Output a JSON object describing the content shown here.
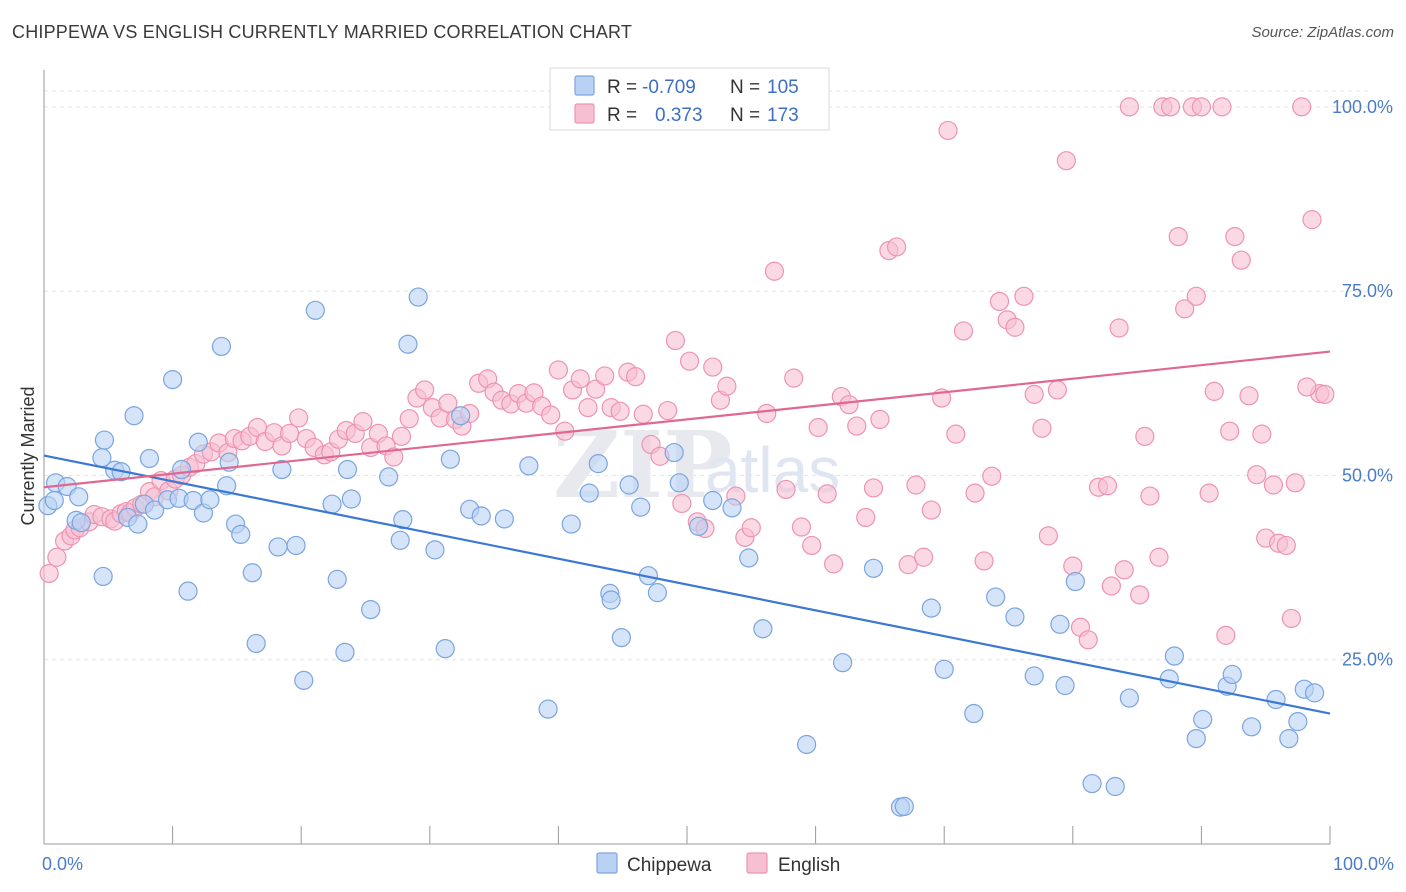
{
  "header": {
    "title": "CHIPPEWA VS ENGLISH CURRENTLY MARRIED CORRELATION CHART",
    "source": "Source: ZipAtlas.com"
  },
  "watermark": {
    "zip": "ZIP",
    "atlas": "atlas"
  },
  "legend": {
    "rows": [
      {
        "r_label": "R =",
        "r_value": "-0.709",
        "n_label": "N =",
        "n_value": "105"
      },
      {
        "r_label": "R =",
        "r_value": "0.373",
        "n_label": "N =",
        "n_value": "173"
      }
    ]
  },
  "bottom_legend": [
    "Chippewa",
    "English"
  ],
  "colors": {
    "chippewa_fill": "#b9d2f3",
    "chippewa_stroke": "#7aa5e0",
    "chippewa_line": "#3b78d4",
    "english_fill": "#f7c0d2",
    "english_stroke": "#ee93b2",
    "english_line": "#e06890"
  },
  "chart_data": {
    "type": "scatter",
    "title": "CHIPPEWA VS ENGLISH CURRENTLY MARRIED CORRELATION CHART",
    "xlabel": "",
    "ylabel": "Currently Married",
    "xlim": [
      0,
      100
    ],
    "ylim": [
      0,
      105
    ],
    "x_tick_labels": [
      "0.0%",
      "100.0%"
    ],
    "y_ticks": [
      25,
      50,
      75,
      100
    ],
    "y_tick_labels": [
      "25.0%",
      "50.0%",
      "75.0%",
      "100.0%"
    ],
    "grid": true,
    "legend_position": "top-center",
    "series": [
      {
        "name": "Chippewa",
        "r": -0.709,
        "n": 105,
        "trend": [
          [
            0,
            52.7
          ],
          [
            100,
            17.7
          ]
        ],
        "points": [
          [
            0.3,
            45.9
          ],
          [
            0.8,
            46.6
          ],
          [
            0.9,
            49.0
          ],
          [
            1.8,
            48.5
          ],
          [
            2.5,
            43.9
          ],
          [
            2.7,
            47.1
          ],
          [
            2.9,
            43.6
          ],
          [
            4.5,
            52.4
          ],
          [
            4.6,
            36.3
          ],
          [
            4.7,
            54.8
          ],
          [
            5.5,
            50.7
          ],
          [
            6.0,
            50.5
          ],
          [
            6.5,
            44.3
          ],
          [
            7.0,
            58.1
          ],
          [
            7.3,
            43.4
          ],
          [
            7.8,
            46.1
          ],
          [
            8.2,
            52.3
          ],
          [
            8.6,
            45.3
          ],
          [
            9.6,
            46.7
          ],
          [
            10.0,
            63.0
          ],
          [
            10.5,
            46.9
          ],
          [
            10.7,
            50.8
          ],
          [
            11.2,
            34.3
          ],
          [
            11.6,
            46.6
          ],
          [
            12.0,
            54.5
          ],
          [
            12.4,
            44.9
          ],
          [
            12.9,
            46.7
          ],
          [
            13.8,
            67.5
          ],
          [
            14.2,
            48.6
          ],
          [
            14.4,
            51.8
          ],
          [
            14.9,
            43.4
          ],
          [
            15.3,
            42.0
          ],
          [
            16.2,
            36.8
          ],
          [
            16.5,
            27.2
          ],
          [
            18.2,
            40.3
          ],
          [
            18.5,
            50.8
          ],
          [
            19.6,
            40.5
          ],
          [
            20.2,
            22.2
          ],
          [
            21.1,
            72.4
          ],
          [
            22.4,
            46.1
          ],
          [
            22.8,
            35.9
          ],
          [
            23.4,
            26.0
          ],
          [
            23.6,
            50.8
          ],
          [
            23.9,
            46.8
          ],
          [
            25.4,
            31.8
          ],
          [
            26.8,
            49.8
          ],
          [
            27.7,
            41.2
          ],
          [
            27.9,
            44.0
          ],
          [
            28.3,
            67.8
          ],
          [
            29.1,
            74.2
          ],
          [
            30.4,
            39.9
          ],
          [
            31.2,
            26.5
          ],
          [
            31.6,
            52.2
          ],
          [
            32.4,
            58.1
          ],
          [
            33.1,
            45.4
          ],
          [
            34.0,
            44.5
          ],
          [
            35.8,
            44.1
          ],
          [
            37.7,
            51.3
          ],
          [
            39.2,
            18.3
          ],
          [
            41.0,
            43.4
          ],
          [
            42.4,
            47.6
          ],
          [
            43.1,
            51.6
          ],
          [
            44.0,
            34.0
          ],
          [
            44.1,
            33.1
          ],
          [
            44.9,
            28.0
          ],
          [
            45.5,
            48.7
          ],
          [
            46.4,
            45.7
          ],
          [
            47.0,
            36.4
          ],
          [
            47.7,
            34.1
          ],
          [
            49.0,
            53.1
          ],
          [
            49.4,
            49.0
          ],
          [
            50.9,
            43.1
          ],
          [
            52.0,
            46.6
          ],
          [
            53.5,
            45.6
          ],
          [
            54.8,
            38.8
          ],
          [
            55.9,
            29.2
          ],
          [
            59.3,
            13.5
          ],
          [
            62.1,
            24.6
          ],
          [
            64.5,
            37.4
          ],
          [
            66.6,
            5.0
          ],
          [
            66.9,
            5.1
          ],
          [
            69.0,
            32.0
          ],
          [
            70.0,
            23.7
          ],
          [
            72.3,
            17.7
          ],
          [
            74.0,
            33.5
          ],
          [
            75.5,
            30.8
          ],
          [
            77.0,
            22.8
          ],
          [
            79.0,
            29.8
          ],
          [
            79.4,
            21.5
          ],
          [
            80.2,
            35.6
          ],
          [
            81.5,
            8.2
          ],
          [
            83.3,
            7.8
          ],
          [
            84.4,
            19.8
          ],
          [
            87.5,
            22.4
          ],
          [
            87.9,
            25.5
          ],
          [
            89.6,
            14.3
          ],
          [
            90.1,
            16.9
          ],
          [
            92.0,
            21.4
          ],
          [
            92.4,
            23.0
          ],
          [
            93.9,
            15.9
          ],
          [
            95.8,
            19.6
          ],
          [
            96.8,
            14.3
          ],
          [
            97.5,
            16.6
          ],
          [
            98.0,
            21.0
          ],
          [
            98.8,
            20.5
          ]
        ]
      },
      {
        "name": "English",
        "r": 0.373,
        "n": 173,
        "trend": [
          [
            0,
            48.4
          ],
          [
            100,
            66.8
          ]
        ],
        "points": [
          [
            0.4,
            36.7
          ],
          [
            1.0,
            38.9
          ],
          [
            1.6,
            41.1
          ],
          [
            2.1,
            41.8
          ],
          [
            2.4,
            42.6
          ],
          [
            2.8,
            42.9
          ],
          [
            3.5,
            43.7
          ],
          [
            3.9,
            44.7
          ],
          [
            4.5,
            44.4
          ],
          [
            5.2,
            44.1
          ],
          [
            5.5,
            43.8
          ],
          [
            6.0,
            44.8
          ],
          [
            6.4,
            45.1
          ],
          [
            6.7,
            44.9
          ],
          [
            7.1,
            45.6
          ],
          [
            7.6,
            46.1
          ],
          [
            8.2,
            47.8
          ],
          [
            8.6,
            47.1
          ],
          [
            9.1,
            49.3
          ],
          [
            9.7,
            47.9
          ],
          [
            10.2,
            49.5
          ],
          [
            10.7,
            50.0
          ],
          [
            11.3,
            51.1
          ],
          [
            11.8,
            51.6
          ],
          [
            12.4,
            52.9
          ],
          [
            13.0,
            53.2
          ],
          [
            13.6,
            54.4
          ],
          [
            14.3,
            53.1
          ],
          [
            14.8,
            55.0
          ],
          [
            15.4,
            54.7
          ],
          [
            16.0,
            55.3
          ],
          [
            16.6,
            56.5
          ],
          [
            17.2,
            54.6
          ],
          [
            17.9,
            55.8
          ],
          [
            18.5,
            54.0
          ],
          [
            19.1,
            55.7
          ],
          [
            19.8,
            57.8
          ],
          [
            20.4,
            55.0
          ],
          [
            21.0,
            53.8
          ],
          [
            21.8,
            52.8
          ],
          [
            22.3,
            53.2
          ],
          [
            22.9,
            54.9
          ],
          [
            23.5,
            56.1
          ],
          [
            24.2,
            55.7
          ],
          [
            24.8,
            57.3
          ],
          [
            25.4,
            53.8
          ],
          [
            26.0,
            55.7
          ],
          [
            26.6,
            54.0
          ],
          [
            27.2,
            52.5
          ],
          [
            27.8,
            55.3
          ],
          [
            28.4,
            57.7
          ],
          [
            29.0,
            60.5
          ],
          [
            29.6,
            61.6
          ],
          [
            30.2,
            59.2
          ],
          [
            30.8,
            57.8
          ],
          [
            31.4,
            59.8
          ],
          [
            32.0,
            57.6
          ],
          [
            32.5,
            56.7
          ],
          [
            33.1,
            58.4
          ],
          [
            33.8,
            62.5
          ],
          [
            34.5,
            63.1
          ],
          [
            35.0,
            61.3
          ],
          [
            35.6,
            60.2
          ],
          [
            36.3,
            59.7
          ],
          [
            36.9,
            61.1
          ],
          [
            37.5,
            59.8
          ],
          [
            38.1,
            61.2
          ],
          [
            38.7,
            59.4
          ],
          [
            39.4,
            58.2
          ],
          [
            40.0,
            64.3
          ],
          [
            40.5,
            56.0
          ],
          [
            41.1,
            61.6
          ],
          [
            41.7,
            63.1
          ],
          [
            42.3,
            59.2
          ],
          [
            42.9,
            61.7
          ],
          [
            43.6,
            63.5
          ],
          [
            44.1,
            59.2
          ],
          [
            44.8,
            58.7
          ],
          [
            45.4,
            64.0
          ],
          [
            46.0,
            63.4
          ],
          [
            46.6,
            58.3
          ],
          [
            47.2,
            54.2
          ],
          [
            47.9,
            52.6
          ],
          [
            48.5,
            58.8
          ],
          [
            49.1,
            68.3
          ],
          [
            49.6,
            46.2
          ],
          [
            50.2,
            65.5
          ],
          [
            50.8,
            43.7
          ],
          [
            51.4,
            42.8
          ],
          [
            52.0,
            64.7
          ],
          [
            52.6,
            60.2
          ],
          [
            53.1,
            62.1
          ],
          [
            53.8,
            47.2
          ],
          [
            54.5,
            41.6
          ],
          [
            55.0,
            42.9
          ],
          [
            56.2,
            58.4
          ],
          [
            56.8,
            77.7
          ],
          [
            57.7,
            48.1
          ],
          [
            58.3,
            63.2
          ],
          [
            58.9,
            43.0
          ],
          [
            59.7,
            40.5
          ],
          [
            60.2,
            56.5
          ],
          [
            60.9,
            47.5
          ],
          [
            61.4,
            38.0
          ],
          [
            62.0,
            60.7
          ],
          [
            62.6,
            59.6
          ],
          [
            63.2,
            56.7
          ],
          [
            63.9,
            44.3
          ],
          [
            64.5,
            48.3
          ],
          [
            65.0,
            57.6
          ],
          [
            65.7,
            80.5
          ],
          [
            66.3,
            81.0
          ],
          [
            67.2,
            37.9
          ],
          [
            67.8,
            48.7
          ],
          [
            68.4,
            38.9
          ],
          [
            69.0,
            45.3
          ],
          [
            69.8,
            60.5
          ],
          [
            70.3,
            96.8
          ],
          [
            70.9,
            55.6
          ],
          [
            71.5,
            69.6
          ],
          [
            72.4,
            47.6
          ],
          [
            73.1,
            38.4
          ],
          [
            73.7,
            49.9
          ],
          [
            74.3,
            73.6
          ],
          [
            74.9,
            71.1
          ],
          [
            75.5,
            70.1
          ],
          [
            76.2,
            74.3
          ],
          [
            77.0,
            61.0
          ],
          [
            77.6,
            56.4
          ],
          [
            78.1,
            41.8
          ],
          [
            78.8,
            61.6
          ],
          [
            79.5,
            92.7
          ],
          [
            80.0,
            37.7
          ],
          [
            80.6,
            29.4
          ],
          [
            81.2,
            27.7
          ],
          [
            82.0,
            48.4
          ],
          [
            82.7,
            48.6
          ],
          [
            83.6,
            70.0
          ],
          [
            84.4,
            100.0
          ],
          [
            85.2,
            33.8
          ],
          [
            86.0,
            47.2
          ],
          [
            87.0,
            100.0
          ],
          [
            87.6,
            100.0
          ],
          [
            88.2,
            82.4
          ],
          [
            89.3,
            100.0
          ],
          [
            90.0,
            100.0
          ],
          [
            91.0,
            61.4
          ],
          [
            91.9,
            28.3
          ],
          [
            92.6,
            82.4
          ],
          [
            93.1,
            79.2
          ],
          [
            94.3,
            50.1
          ],
          [
            95.0,
            41.5
          ],
          [
            96.0,
            40.8
          ],
          [
            97.0,
            30.6
          ],
          [
            97.8,
            100.0
          ],
          [
            98.6,
            84.7
          ],
          [
            99.2,
            61.1
          ],
          [
            99.6,
            61.0
          ],
          [
            83.0,
            35.0
          ],
          [
            84.0,
            37.2
          ],
          [
            85.6,
            55.3
          ],
          [
            86.7,
            38.9
          ],
          [
            88.7,
            72.6
          ],
          [
            89.6,
            74.3
          ],
          [
            90.6,
            47.6
          ],
          [
            91.6,
            100.0
          ],
          [
            92.2,
            56.0
          ],
          [
            93.7,
            60.8
          ],
          [
            94.7,
            55.6
          ],
          [
            95.6,
            48.7
          ],
          [
            96.6,
            40.5
          ],
          [
            97.3,
            49.0
          ],
          [
            98.2,
            62.0
          ]
        ]
      }
    ]
  }
}
